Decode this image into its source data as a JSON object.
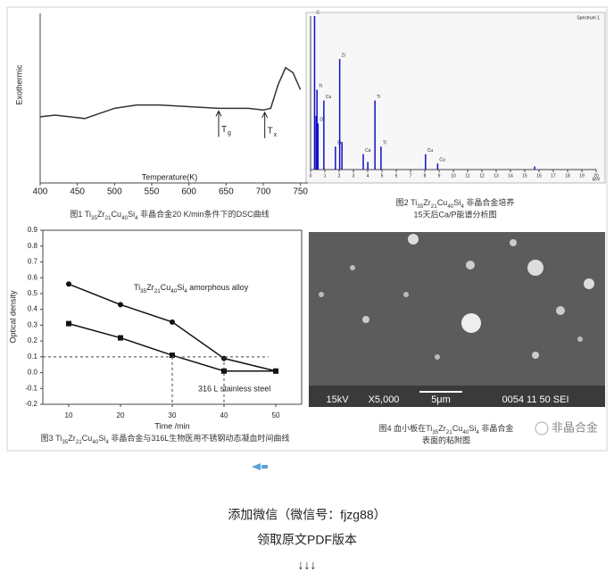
{
  "chart_data": [
    {
      "type": "line",
      "xlabel": "Temperature(K)",
      "ylabel": "Exothermic",
      "x": [
        400,
        420,
        440,
        460,
        480,
        500,
        530,
        560,
        600,
        640,
        680,
        700,
        710,
        720,
        730,
        740,
        750
      ],
      "values": [
        39,
        40,
        39,
        38,
        41,
        44,
        46,
        46,
        45,
        44,
        44,
        43,
        44,
        58,
        68,
        65,
        55
      ],
      "color": "#333333",
      "xlim": [
        400,
        760
      ],
      "xticks": [
        400,
        450,
        500,
        550,
        600,
        650,
        700,
        750
      ],
      "ylim": [
        0,
        100
      ],
      "annotations": [
        {
          "text": "T",
          "sub": "g",
          "x": 640
        },
        {
          "text": "T",
          "sub": "x",
          "x": 702
        }
      ],
      "caption": [
        "图1 Ti35Zr21Cu40Si4 非晶合金20 K/min条件下的DSC曲线"
      ]
    },
    {
      "type": "stem",
      "title": "Spectrum 1",
      "xlabel": "keV",
      "x": [
        0.28,
        0.39,
        0.45,
        0.52,
        0.93,
        1.74,
        2.04,
        2.2,
        3.69,
        4.01,
        4.51,
        4.93,
        8.05,
        8.9,
        15.7
      ],
      "values": [
        100,
        35,
        52,
        30,
        45,
        15,
        72,
        18,
        10,
        5,
        45,
        15,
        10,
        4,
        2
      ],
      "labels": [
        "C",
        null,
        "Ti",
        "O",
        "Cu",
        "Si",
        "Zr",
        null,
        "Ca",
        null,
        "Ti",
        "Ti",
        "Cu",
        "Cu",
        null
      ],
      "color": "#1010c8",
      "xlim": [
        0,
        20
      ],
      "xticks": [
        0,
        1,
        2,
        3,
        4,
        5,
        6,
        7,
        8,
        9,
        10,
        11,
        12,
        13,
        14,
        15,
        16,
        17,
        18,
        19,
        20
      ],
      "ylim": [
        0,
        100
      ],
      "caption": [
        "图2 Ti35Zr21Cu40Si4 非晶合金培养",
        "15天后Ca/P能谱分析图"
      ]
    },
    {
      "type": "line",
      "xlabel": "Time /min",
      "ylabel": "Optical density",
      "x": [
        10,
        20,
        30,
        40,
        50
      ],
      "series": [
        {
          "name": "Ti35Zr21Cu40Si4 amorphous alloy",
          "marker": "circle",
          "color": "#111111",
          "values": [
            0.56,
            0.43,
            0.32,
            0.09,
            0.01
          ]
        },
        {
          "name": "316 L stainless steel",
          "marker": "square",
          "color": "#111111",
          "values": [
            0.31,
            0.22,
            0.11,
            0.01,
            0.01
          ]
        }
      ],
      "xlim": [
        5,
        55
      ],
      "xticks": [
        10,
        20,
        30,
        40,
        50
      ],
      "ylim": [
        -0.2,
        0.9
      ],
      "yticks": [
        0.9,
        0.8,
        0.7,
        0.6,
        0.5,
        0.4,
        0.3,
        0.2,
        0.1,
        {
          "value": 0,
          "label": "0.0"
        },
        -0.1,
        -0.2
      ],
      "threshold": 0.1,
      "threshold_x": [
        30,
        40
      ],
      "caption": [
        "图3 Ti35Zr21Cu40Si4 非晶合金与316L生物医用不锈钢动态凝血时间曲线"
      ]
    }
  ],
  "sem_image": {
    "labels": [
      "15kV",
      "X5,000",
      "5μm",
      "0054 11 50 SEI"
    ],
    "caption": [
      "图4 血小板在Ti35Zr21Cu40Si4 非晶合金",
      "表面的粘附图"
    ]
  },
  "watermark": "非晶合金",
  "footer": [
    "添加微信（微信号：fjzg88）",
    "领取原文PDF版本",
    "↓↓↓"
  ]
}
